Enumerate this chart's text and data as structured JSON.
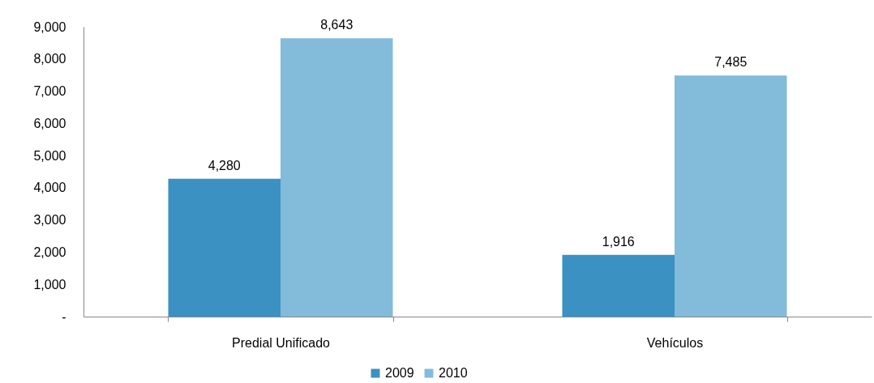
{
  "chart_data": {
    "type": "bar",
    "categories": [
      "Predial Unificado",
      "Vehículos"
    ],
    "series": [
      {
        "name": "2009",
        "color": "#3a91c2",
        "values": [
          4280,
          1916
        ],
        "value_labels": [
          "4,280",
          "1,916"
        ]
      },
      {
        "name": "2010",
        "color": "#83bbdb",
        "values": [
          8643,
          7485
        ],
        "value_labels": [
          "8,643",
          "7,485"
        ]
      }
    ],
    "ylim": [
      0,
      9000
    ],
    "yticks": [
      {
        "value": 0,
        "label": "-"
      },
      {
        "value": 1000,
        "label": "1,000"
      },
      {
        "value": 2000,
        "label": "2,000"
      },
      {
        "value": 3000,
        "label": "3,000"
      },
      {
        "value": 4000,
        "label": "4,000"
      },
      {
        "value": 5000,
        "label": "5,000"
      },
      {
        "value": 6000,
        "label": "6,000"
      },
      {
        "value": 7000,
        "label": "7,000"
      },
      {
        "value": 8000,
        "label": "8,000"
      },
      {
        "value": 9000,
        "label": "9,000"
      }
    ],
    "grid": false,
    "legend": "bottom"
  }
}
